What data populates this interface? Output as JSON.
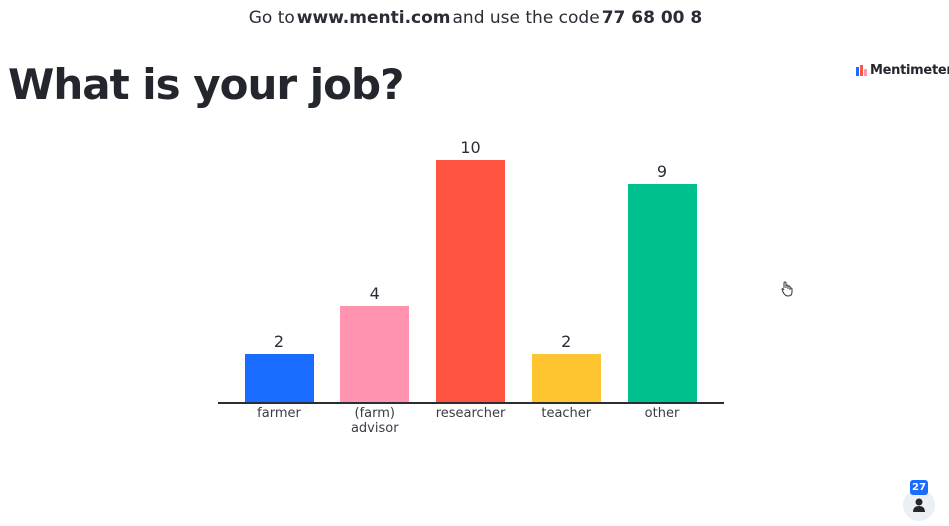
{
  "header": {
    "prefix": "Go to",
    "url": "www.menti.com",
    "middle": "and use the code",
    "code": "77 68 00 8"
  },
  "brand": "Mentimeter",
  "participants": "27",
  "chart_data": {
    "type": "bar",
    "title": "What is your job?",
    "categories": [
      "farmer",
      "(farm) advisor",
      "researcher",
      "teacher",
      "other"
    ],
    "values": [
      2,
      4,
      10,
      2,
      9
    ],
    "colors": [
      "#196cff",
      "#ff93b0",
      "#ff5440",
      "#ffc531",
      "#00c08e"
    ]
  }
}
